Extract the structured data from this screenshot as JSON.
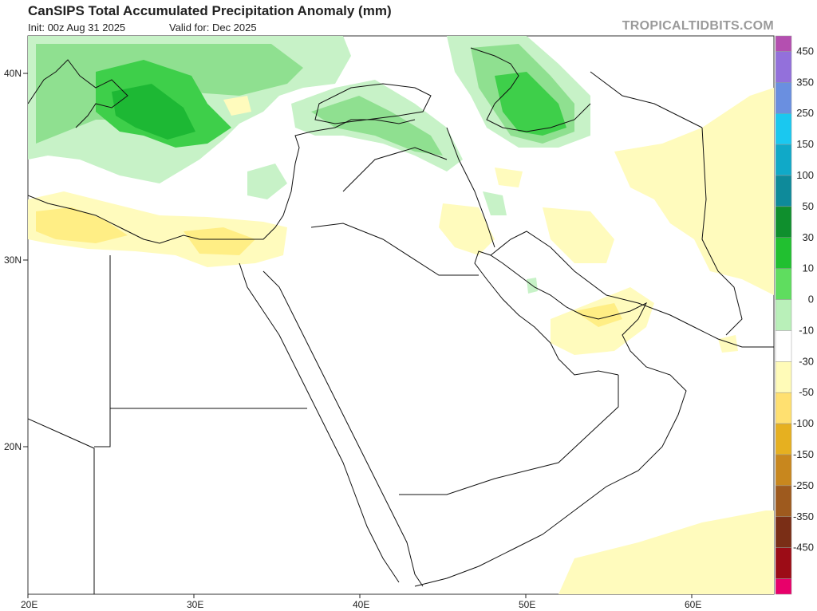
{
  "header": {
    "title": "CanSIPS Total Accumulated Precipitation Anomaly (mm)",
    "init": "Init: 00z Aug 31 2025",
    "valid": "Valid for: Dec 2025",
    "credit": "TROPICALTIDBITS.COM"
  },
  "axes": {
    "latitudes": [
      "40N",
      "30N",
      "20N"
    ],
    "longitudes": [
      "20E",
      "30E",
      "40E",
      "50E",
      "60E"
    ]
  },
  "colorbar": {
    "levels": [
      {
        "label": "450",
        "color": "#9370db"
      },
      {
        "label": "350",
        "color": "#6a8fe0"
      },
      {
        "label": "250",
        "color": "#1ac8f0"
      },
      {
        "label": "150",
        "color": "#10a9c8"
      },
      {
        "label": "100",
        "color": "#0e8a9a"
      },
      {
        "label": "50",
        "color": "#0f8f2d"
      },
      {
        "label": "30",
        "color": "#21c030"
      },
      {
        "label": "10",
        "color": "#5fdd5f"
      },
      {
        "label": "0",
        "color": "#b9f0b9"
      },
      {
        "label": "-10",
        "color": "#ffffff"
      },
      {
        "label": "-30",
        "color": "#fffbb8"
      },
      {
        "label": "-50",
        "color": "#ffe070"
      },
      {
        "label": "-100",
        "color": "#e6b020"
      },
      {
        "label": "-150",
        "color": "#c8871e"
      },
      {
        "label": "-250",
        "color": "#9e5a1e"
      },
      {
        "label": "-350",
        "color": "#7a2e16"
      },
      {
        "label": "-450",
        "color": "#9c0c16"
      }
    ],
    "top_color": "#b44fb0",
    "bottom_color": "#e8006a"
  }
}
